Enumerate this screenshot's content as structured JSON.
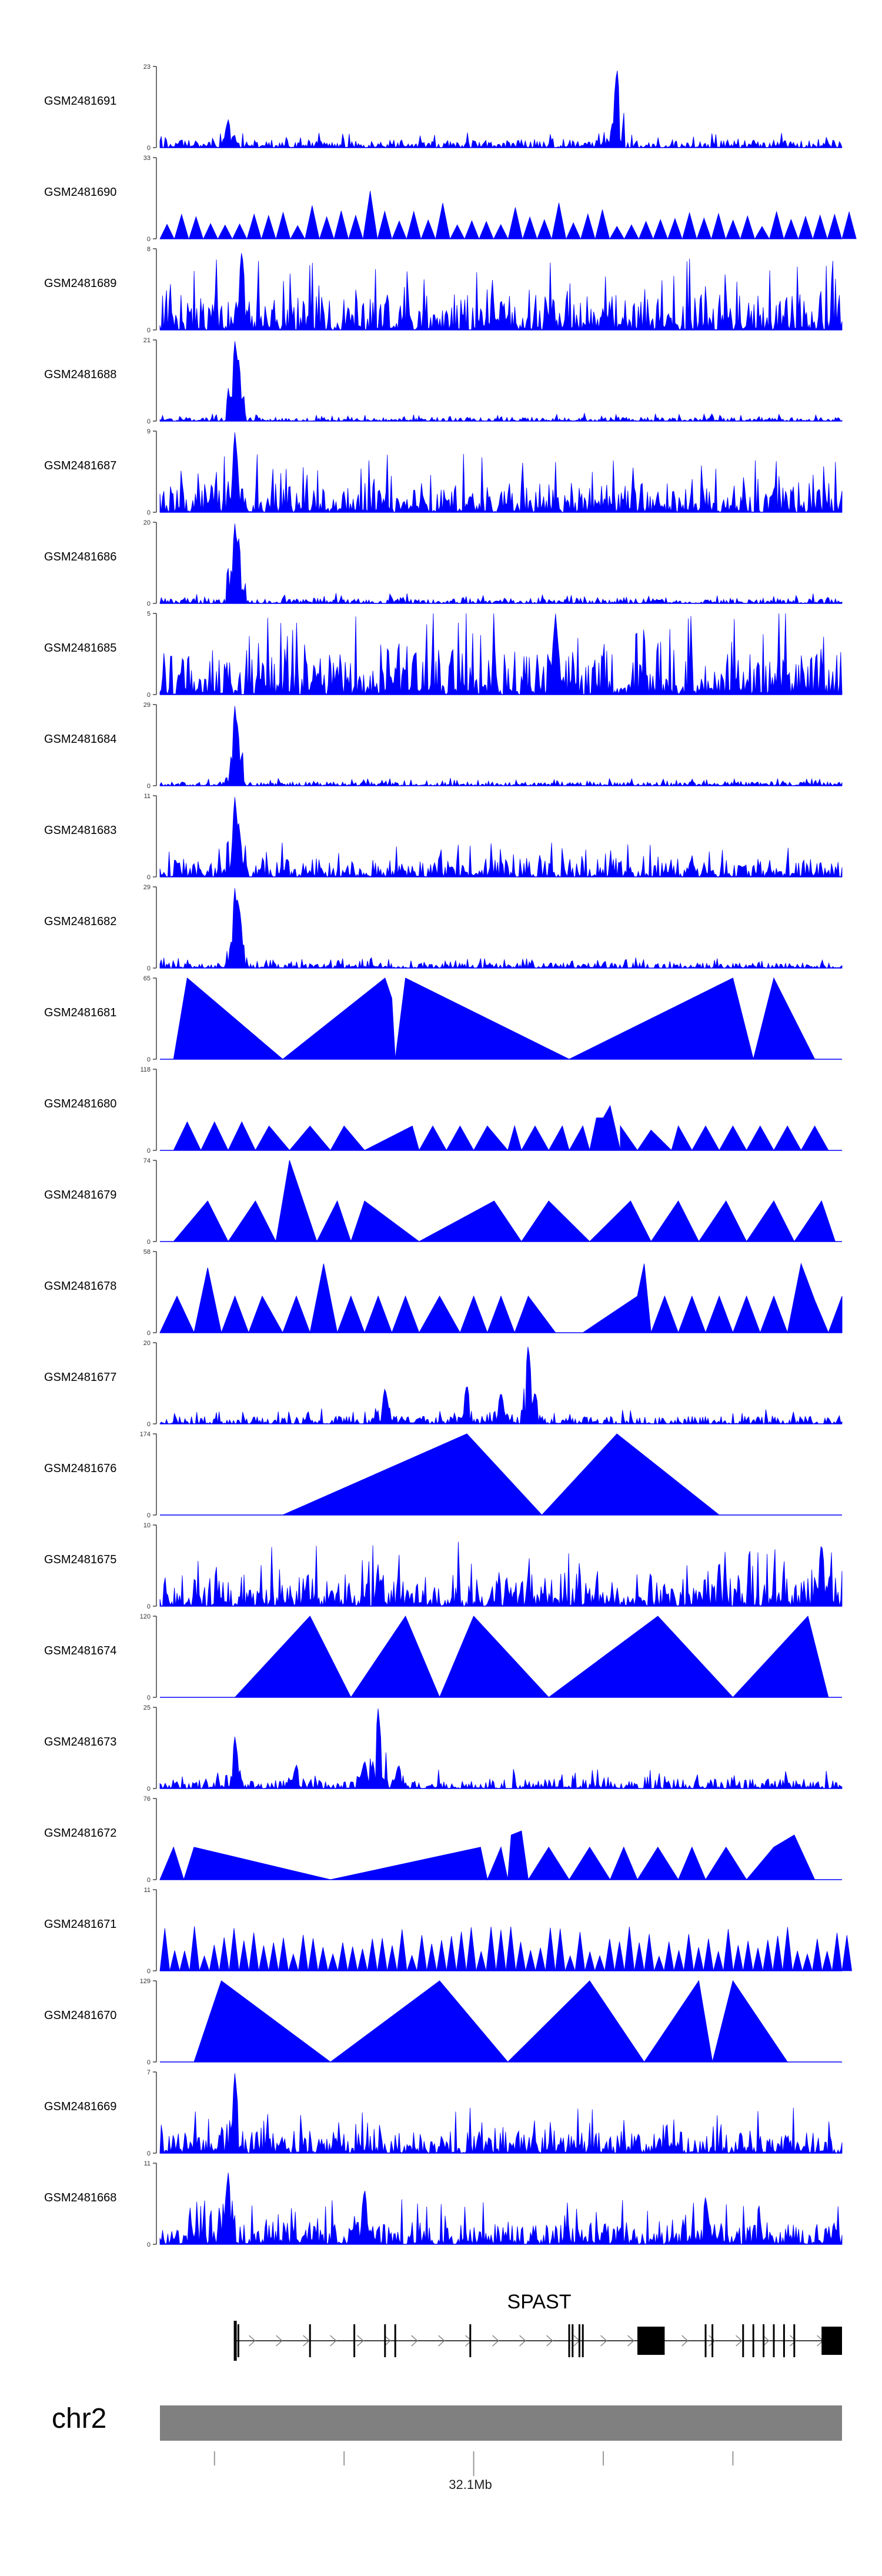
{
  "chart_data": {
    "type": "area",
    "title": "",
    "tracks": [
      {
        "name": "GSM2481691",
        "ymax": "23",
        "ymin": "0",
        "seed": 11,
        "kind": "noise",
        "base": 0.12,
        "peaks": [
          [
            0.1,
            0.35
          ],
          [
            0.67,
            1.0
          ]
        ]
      },
      {
        "name": "GSM2481690",
        "ymax": "33",
        "ymin": "0",
        "seed": 12,
        "kind": "spikes",
        "n": 48,
        "base": 0.45,
        "peaks": [
          [
            0.25,
            1.0
          ],
          [
            0.3,
            0.75
          ]
        ]
      },
      {
        "name": "GSM2481689",
        "ymax": "8",
        "ymin": "0",
        "seed": 13,
        "kind": "noise",
        "base": 0.55,
        "peaks": [
          [
            0.12,
            1.0
          ]
        ]
      },
      {
        "name": "GSM2481688",
        "ymax": "21",
        "ymin": "0",
        "seed": 14,
        "kind": "noise",
        "base": 0.06,
        "peaks": [
          [
            0.11,
            1.0
          ],
          [
            0.112,
            0.9
          ],
          [
            0.115,
            0.8
          ]
        ]
      },
      {
        "name": "GSM2481687",
        "ymax": "9",
        "ymin": "0",
        "seed": 15,
        "kind": "noise",
        "base": 0.45,
        "peaks": [
          [
            0.11,
            1.0
          ]
        ]
      },
      {
        "name": "GSM2481686",
        "ymax": "20",
        "ymin": "0",
        "seed": 16,
        "kind": "noise",
        "base": 0.08,
        "peaks": [
          [
            0.11,
            1.0
          ],
          [
            0.115,
            0.85
          ]
        ]
      },
      {
        "name": "GSM2481685",
        "ymax": "5",
        "ymin": "0",
        "seed": 17,
        "kind": "noise",
        "base": 0.7,
        "peaks": [
          [
            0.58,
            1.0
          ]
        ]
      },
      {
        "name": "GSM2481684",
        "ymax": "29",
        "ymin": "0",
        "seed": 18,
        "kind": "noise",
        "base": 0.06,
        "peaks": [
          [
            0.11,
            1.0
          ],
          [
            0.113,
            0.8
          ]
        ]
      },
      {
        "name": "GSM2481683",
        "ymax": "11",
        "ymin": "0",
        "seed": 19,
        "kind": "noise",
        "base": 0.28,
        "peaks": [
          [
            0.11,
            1.0
          ],
          [
            0.115,
            0.7
          ]
        ]
      },
      {
        "name": "GSM2481682",
        "ymax": "29",
        "ymin": "0",
        "seed": 20,
        "kind": "noise",
        "base": 0.08,
        "peaks": [
          [
            0.11,
            1.0
          ],
          [
            0.113,
            0.9
          ],
          [
            0.116,
            0.8
          ]
        ]
      },
      {
        "name": "GSM2481681",
        "ymax": "65",
        "ymin": "0",
        "kind": "tri",
        "pts": [
          [
            0.02,
            0
          ],
          [
            0.04,
            1
          ],
          [
            0.18,
            0
          ],
          [
            0.33,
            1
          ],
          [
            0.34,
            0.75
          ],
          [
            0.345,
            0
          ],
          [
            0.36,
            1
          ],
          [
            0.6,
            0
          ],
          [
            0.84,
            1
          ],
          [
            0.87,
            0
          ],
          [
            0.9,
            1
          ],
          [
            0.96,
            0
          ]
        ]
      },
      {
        "name": "GSM2481680",
        "ymax": "118",
        "ymin": "0",
        "kind": "tri",
        "pts": [
          [
            0.02,
            0
          ],
          [
            0.04,
            0.35
          ],
          [
            0.06,
            0
          ],
          [
            0.08,
            0.35
          ],
          [
            0.1,
            0
          ],
          [
            0.12,
            0.35
          ],
          [
            0.14,
            0
          ],
          [
            0.16,
            0.3
          ],
          [
            0.19,
            0
          ],
          [
            0.22,
            0.3
          ],
          [
            0.25,
            0
          ],
          [
            0.27,
            0.3
          ],
          [
            0.3,
            0
          ],
          [
            0.37,
            0.3
          ],
          [
            0.38,
            0
          ],
          [
            0.4,
            0.3
          ],
          [
            0.42,
            0
          ],
          [
            0.44,
            0.3
          ],
          [
            0.46,
            0
          ],
          [
            0.48,
            0.3
          ],
          [
            0.51,
            0
          ],
          [
            0.52,
            0.3
          ],
          [
            0.53,
            0
          ],
          [
            0.55,
            0.3
          ],
          [
            0.57,
            0
          ],
          [
            0.59,
            0.3
          ],
          [
            0.6,
            0
          ],
          [
            0.62,
            0.3
          ],
          [
            0.63,
            0
          ],
          [
            0.64,
            0.4
          ],
          [
            0.65,
            0.4
          ],
          [
            0.66,
            0.55
          ],
          [
            0.675,
            0
          ],
          [
            0.675,
            0.3
          ],
          [
            0.7,
            0
          ],
          [
            0.72,
            0.25
          ],
          [
            0.75,
            0
          ],
          [
            0.76,
            0.3
          ],
          [
            0.78,
            0
          ],
          [
            0.8,
            0.3
          ],
          [
            0.82,
            0
          ],
          [
            0.84,
            0.3
          ],
          [
            0.86,
            0
          ],
          [
            0.88,
            0.3
          ],
          [
            0.9,
            0
          ],
          [
            0.92,
            0.3
          ],
          [
            0.94,
            0
          ],
          [
            0.96,
            0.3
          ],
          [
            0.98,
            0
          ]
        ]
      },
      {
        "name": "GSM2481679",
        "ymax": "74",
        "ymin": "0",
        "kind": "tri",
        "pts": [
          [
            0.02,
            0
          ],
          [
            0.07,
            0.5
          ],
          [
            0.1,
            0
          ],
          [
            0.14,
            0.5
          ],
          [
            0.17,
            0
          ],
          [
            0.19,
            1
          ],
          [
            0.23,
            0
          ],
          [
            0.26,
            0.5
          ],
          [
            0.28,
            0
          ],
          [
            0.3,
            0.5
          ],
          [
            0.38,
            0
          ],
          [
            0.49,
            0.5
          ],
          [
            0.53,
            0
          ],
          [
            0.57,
            0.5
          ],
          [
            0.63,
            0
          ],
          [
            0.69,
            0.5
          ],
          [
            0.72,
            0
          ],
          [
            0.76,
            0.5
          ],
          [
            0.79,
            0
          ],
          [
            0.83,
            0.5
          ],
          [
            0.86,
            0
          ],
          [
            0.9,
            0.5
          ],
          [
            0.93,
            0
          ],
          [
            0.97,
            0.5
          ],
          [
            0.99,
            0
          ]
        ]
      },
      {
        "name": "GSM2481678",
        "ymax": "58",
        "ymin": "0",
        "kind": "tri",
        "pts": [
          [
            0,
            0
          ],
          [
            0.025,
            0.45
          ],
          [
            0.05,
            0
          ],
          [
            0.07,
            0.8
          ],
          [
            0.09,
            0
          ],
          [
            0.11,
            0.45
          ],
          [
            0.13,
            0
          ],
          [
            0.15,
            0.45
          ],
          [
            0.18,
            0
          ],
          [
            0.2,
            0.45
          ],
          [
            0.22,
            0
          ],
          [
            0.24,
            0.85
          ],
          [
            0.26,
            0
          ],
          [
            0.28,
            0.45
          ],
          [
            0.3,
            0
          ],
          [
            0.32,
            0.45
          ],
          [
            0.34,
            0
          ],
          [
            0.36,
            0.45
          ],
          [
            0.38,
            0
          ],
          [
            0.41,
            0.45
          ],
          [
            0.44,
            0
          ],
          [
            0.46,
            0.45
          ],
          [
            0.48,
            0
          ],
          [
            0.5,
            0.45
          ],
          [
            0.52,
            0
          ],
          [
            0.54,
            0.45
          ],
          [
            0.58,
            0
          ],
          [
            0.62,
            0
          ],
          [
            0.7,
            0.45
          ],
          [
            0.71,
            0.85
          ],
          [
            0.72,
            0
          ],
          [
            0.74,
            0.45
          ],
          [
            0.76,
            0
          ],
          [
            0.78,
            0.45
          ],
          [
            0.8,
            0
          ],
          [
            0.82,
            0.45
          ],
          [
            0.84,
            0
          ],
          [
            0.86,
            0.45
          ],
          [
            0.88,
            0
          ],
          [
            0.9,
            0.45
          ],
          [
            0.92,
            0
          ],
          [
            0.94,
            0.85
          ],
          [
            0.96,
            0.4
          ],
          [
            0.98,
            0
          ],
          [
            1,
            0.45
          ]
        ]
      },
      {
        "name": "GSM2481677",
        "ymax": "20",
        "ymin": "0",
        "seed": 21,
        "kind": "noise",
        "base": 0.12,
        "peaks": [
          [
            0.33,
            0.45
          ],
          [
            0.45,
            0.5
          ],
          [
            0.5,
            0.4
          ],
          [
            0.54,
            1.0
          ],
          [
            0.55,
            0.4
          ]
        ]
      },
      {
        "name": "GSM2481676",
        "ymax": "174",
        "ymin": "0",
        "kind": "tri",
        "pts": [
          [
            0.18,
            0
          ],
          [
            0.45,
            1
          ],
          [
            0.56,
            0
          ],
          [
            0.67,
            1
          ],
          [
            0.82,
            0
          ]
        ]
      },
      {
        "name": "GSM2481675",
        "ymax": "10",
        "ymin": "0",
        "seed": 22,
        "kind": "noise",
        "base": 0.5,
        "peaks": [
          [
            0.97,
            0.8
          ]
        ]
      },
      {
        "name": "GSM2481674",
        "ymax": "120",
        "ymin": "0",
        "kind": "tri",
        "pts": [
          [
            0.11,
            0
          ],
          [
            0.22,
            1
          ],
          [
            0.28,
            0
          ],
          [
            0.36,
            1
          ],
          [
            0.41,
            0
          ],
          [
            0.46,
            1
          ],
          [
            0.57,
            0
          ],
          [
            0.73,
            1
          ],
          [
            0.84,
            0
          ],
          [
            0.95,
            1
          ],
          [
            0.98,
            0
          ]
        ]
      },
      {
        "name": "GSM2481673",
        "ymax": "25",
        "ymin": "0",
        "seed": 23,
        "kind": "noise",
        "base": 0.15,
        "peaks": [
          [
            0.11,
            0.65
          ],
          [
            0.2,
            0.3
          ],
          [
            0.3,
            0.35
          ],
          [
            0.32,
            1.0
          ],
          [
            0.35,
            0.3
          ]
        ]
      },
      {
        "name": "GSM2481672",
        "ymax": "76",
        "ymin": "0",
        "kind": "tri",
        "pts": [
          [
            0,
            0
          ],
          [
            0.02,
            0.4
          ],
          [
            0.035,
            0
          ],
          [
            0.05,
            0.4
          ],
          [
            0.25,
            0
          ],
          [
            0.47,
            0.4
          ],
          [
            0.48,
            0
          ],
          [
            0.5,
            0.4
          ],
          [
            0.51,
            0
          ],
          [
            0.515,
            0.55
          ],
          [
            0.53,
            0.6
          ],
          [
            0.54,
            0
          ],
          [
            0.57,
            0.4
          ],
          [
            0.6,
            0
          ],
          [
            0.63,
            0.4
          ],
          [
            0.66,
            0
          ],
          [
            0.68,
            0.4
          ],
          [
            0.7,
            0
          ],
          [
            0.73,
            0.4
          ],
          [
            0.76,
            0
          ],
          [
            0.78,
            0.4
          ],
          [
            0.8,
            0
          ],
          [
            0.83,
            0.4
          ],
          [
            0.86,
            0
          ],
          [
            0.9,
            0.4
          ],
          [
            0.93,
            0.55
          ],
          [
            0.96,
            0
          ]
        ]
      },
      {
        "name": "GSM2481671",
        "ymax": "11",
        "ymin": "0",
        "seed": 24,
        "kind": "spikes",
        "n": 70,
        "base": 0.55,
        "peaks": [
          [
            0.98,
            1.0
          ]
        ]
      },
      {
        "name": "GSM2481670",
        "ymax": "129",
        "ymin": "0",
        "kind": "tri",
        "pts": [
          [
            0.05,
            0
          ],
          [
            0.09,
            1
          ],
          [
            0.25,
            0
          ],
          [
            0.41,
            1
          ],
          [
            0.51,
            0
          ],
          [
            0.63,
            1
          ],
          [
            0.71,
            0
          ],
          [
            0.79,
            1
          ],
          [
            0.81,
            0
          ],
          [
            0.84,
            1
          ],
          [
            0.92,
            0
          ]
        ]
      },
      {
        "name": "GSM2481669",
        "ymax": "7",
        "ymin": "0",
        "seed": 25,
        "kind": "noise",
        "base": 0.35,
        "peaks": [
          [
            0.11,
            1.0
          ]
        ]
      },
      {
        "name": "GSM2481668",
        "ymax": "11",
        "ymin": "0",
        "seed": 26,
        "kind": "noise",
        "base": 0.35,
        "peaks": [
          [
            0.1,
            0.9
          ],
          [
            0.3,
            0.7
          ],
          [
            0.8,
            0.6
          ]
        ]
      }
    ],
    "gene": {
      "name": "SPAST",
      "exons": [
        0.115,
        0.22,
        0.285,
        0.33,
        0.345,
        0.455,
        0.6,
        0.605,
        0.615,
        0.62,
        0.8,
        0.81,
        0.855,
        0.87,
        0.885,
        0.9,
        0.915,
        0.93
      ],
      "big_exons": [
        [
          0.7,
          0.74
        ],
        [
          0.97,
          1.0
        ]
      ],
      "start": 0.11
    },
    "chromosome": {
      "name": "chr2",
      "tick_label": "32.1Mb",
      "ticks": [
        0.08,
        0.27,
        0.46,
        0.65,
        0.84
      ],
      "label_tick": 0.46
    },
    "colors": {
      "signal": "#0000ff",
      "axis": "#444444",
      "gene": "#000000",
      "chrom_bar": "#808080"
    }
  }
}
